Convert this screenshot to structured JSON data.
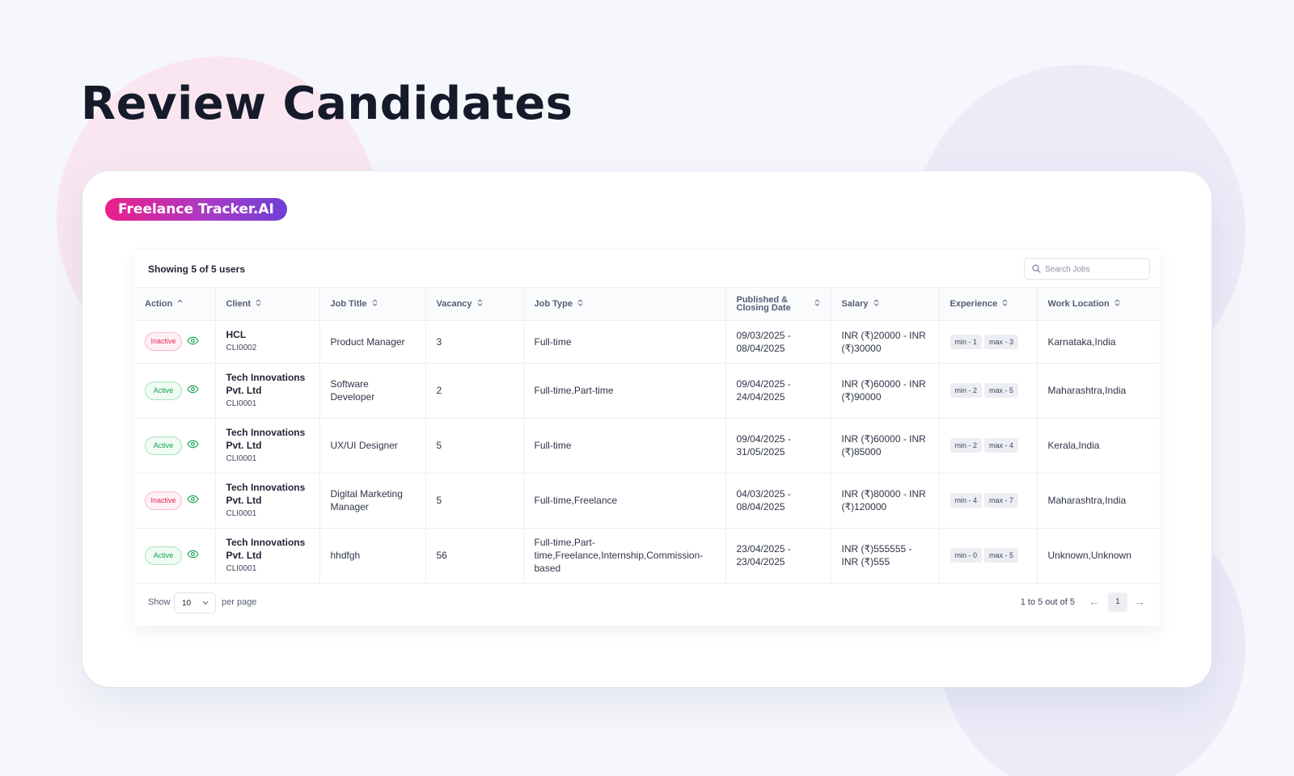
{
  "page": {
    "title": "Review Candidates"
  },
  "brand": {
    "label": "Freelance Tracker.AI"
  },
  "table_header": {
    "showing": "Showing 5 of 5 users",
    "search_placeholder": "Search Jobs"
  },
  "columns": {
    "action": "Action",
    "client": "Client",
    "job_title": "Job Title",
    "vacancy": "Vacancy",
    "job_type": "Job Type",
    "dates": "Published & Closing Date",
    "salary": "Salary",
    "experience": "Experience",
    "location": "Work Location"
  },
  "rows": [
    {
      "status": "Inactive",
      "client_name": "HCL",
      "client_id": "CLI0002",
      "job_title": "Product Manager",
      "vacancy": "3",
      "job_type": "Full-time",
      "dates": "09/03/2025 - 08/04/2025",
      "salary": "INR (₹)20000 - INR (₹)30000",
      "exp_min": "min - 1",
      "exp_max": "max - 3",
      "location": "Karnataka,India"
    },
    {
      "status": "Active",
      "client_name": "Tech Innovations Pvt. Ltd",
      "client_id": "CLI0001",
      "job_title": "Software Developer",
      "vacancy": "2",
      "job_type": "Full-time,Part-time",
      "dates": "09/04/2025 - 24/04/2025",
      "salary": "INR (₹)60000 - INR (₹)90000",
      "exp_min": "min - 2",
      "exp_max": "max - 5",
      "location": "Maharashtra,India"
    },
    {
      "status": "Active",
      "client_name": "Tech Innovations Pvt. Ltd",
      "client_id": "CLI0001",
      "job_title": "UX/UI Designer",
      "vacancy": "5",
      "job_type": "Full-time",
      "dates": "09/04/2025 - 31/05/2025",
      "salary": "INR (₹)60000 - INR (₹)85000",
      "exp_min": "min - 2",
      "exp_max": "max - 4",
      "location": "Kerala,India"
    },
    {
      "status": "Inactive",
      "client_name": "Tech Innovations Pvt. Ltd",
      "client_id": "CLI0001",
      "job_title": "Digital Marketing Manager",
      "vacancy": "5",
      "job_type": "Full-time,Freelance",
      "dates": "04/03/2025 - 08/04/2025",
      "salary": "INR (₹)80000 - INR (₹)120000",
      "exp_min": "min - 4",
      "exp_max": "max - 7",
      "location": "Maharashtra,India"
    },
    {
      "status": "Active",
      "client_name": "Tech Innovations Pvt. Ltd",
      "client_id": "CLI0001",
      "job_title": "hhdfgh",
      "vacancy": "56",
      "job_type": "Full-time,Part-time,Freelance,Internship,Commission-based",
      "dates": "23/04/2025 - 23/04/2025",
      "salary": "INR (₹)555555 - INR (₹)555",
      "exp_min": "min - 0",
      "exp_max": "max - 5",
      "location": "Unknown,Unknown"
    }
  ],
  "footer": {
    "show_label": "Show",
    "per_page_value": "10",
    "per_page_label": "per page",
    "range_text": "1 to 5 out of 5",
    "prev_icon": "←",
    "current_page": "1",
    "next_icon": "→"
  },
  "colors": {
    "inactive": "#e2265c",
    "active": "#17a150",
    "brand_from": "#ec1e8a",
    "brand_to": "#6d3fd6"
  }
}
